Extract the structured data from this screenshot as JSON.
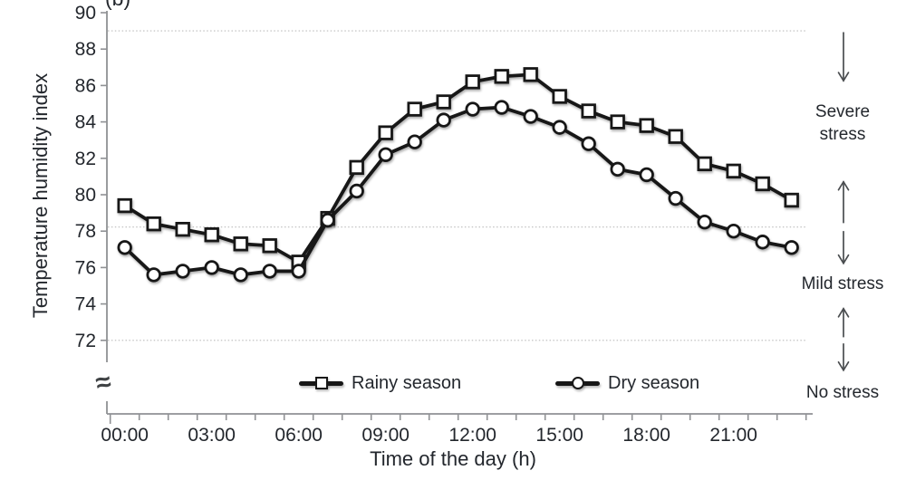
{
  "figure": {
    "panel_label": "(b)",
    "x_axis_title": "Time of the day (h)",
    "y_axis_title": "Temperature humidity index",
    "axis_break_symbol": "≈"
  },
  "legend": {
    "items": [
      {
        "label": "Rainy season",
        "marker": "square"
      },
      {
        "label": "Dry season",
        "marker": "circle"
      }
    ]
  },
  "stress_annotations": [
    {
      "label": "Severe stress"
    },
    {
      "label": "Mild stress"
    },
    {
      "label": "No stress"
    }
  ],
  "colors": {
    "series": "#171717",
    "axis": "#8f9194",
    "grid": "#bcbcbc",
    "text": "#23272d",
    "arrow": "#4a4d50",
    "marker_fill": "#ffffff"
  },
  "chart_data": {
    "type": "line",
    "title": "",
    "xlabel": "Time of the day (h)",
    "ylabel": "Temperature humidity index",
    "x_hours": [
      0,
      1,
      2,
      3,
      4,
      5,
      6,
      7,
      8,
      9,
      10,
      11,
      12,
      13,
      14,
      15,
      16,
      17,
      18,
      19,
      20,
      21,
      22,
      23
    ],
    "x_major_tick_hours": [
      0,
      3,
      6,
      9,
      12,
      15,
      18,
      21
    ],
    "x_major_tick_labels": [
      "00:00",
      "03:00",
      "06:00",
      "09:00",
      "12:00",
      "15:00",
      "18:00",
      "21:00"
    ],
    "y_tick_values": [
      90,
      88,
      86,
      84,
      82,
      80,
      78,
      76,
      74,
      72
    ],
    "ylim": [
      72,
      90
    ],
    "y_axis_break": true,
    "grid": "threshold-lines-only",
    "grid_threshold_values": [
      89,
      78,
      72
    ],
    "legend_position": "bottom",
    "series": [
      {
        "name": "Rainy season",
        "marker": "square",
        "values": [
          79.4,
          78.4,
          78.1,
          77.8,
          77.3,
          77.2,
          76.3,
          78.7,
          81.5,
          83.4,
          84.7,
          85.1,
          86.2,
          86.5,
          86.6,
          85.4,
          84.6,
          84.0,
          83.8,
          83.2,
          81.7,
          81.3,
          80.6,
          79.7
        ]
      },
      {
        "name": "Dry season",
        "marker": "circle",
        "values": [
          77.1,
          75.6,
          75.8,
          76.0,
          75.6,
          75.8,
          75.8,
          78.6,
          80.2,
          82.2,
          82.9,
          84.1,
          84.7,
          84.8,
          84.3,
          83.7,
          82.8,
          81.4,
          81.1,
          79.8,
          78.5,
          78.0,
          77.4,
          77.1
        ]
      }
    ],
    "stress_zones": [
      {
        "label": "Severe stress",
        "between": [
          78,
          89
        ]
      },
      {
        "label": "Mild stress",
        "between": [
          72,
          78
        ]
      },
      {
        "label": "No stress",
        "below": 72
      }
    ]
  }
}
